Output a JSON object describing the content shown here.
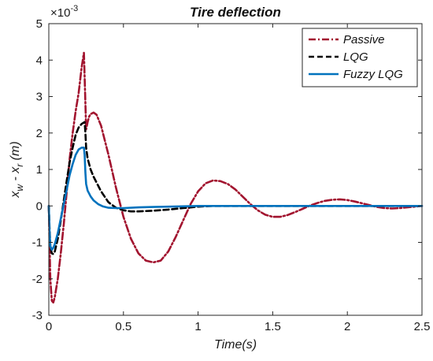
{
  "chart_data": {
    "type": "line",
    "title": "Tire deflection",
    "xlabel": "Time(s)",
    "ylabel": "x_w - x_r (m)",
    "ylabel_parts": {
      "a": "x",
      "a_sub": "w",
      "mid": " - x",
      "b_sub": "r",
      "unit": " (m)"
    },
    "y_exponent_text": "×10",
    "y_exponent_power": "-3",
    "y_scale": 0.001,
    "xlim": [
      0,
      2.5
    ],
    "ylim": [
      -3,
      5
    ],
    "xticks": [
      0,
      0.5,
      1,
      1.5,
      2,
      2.5
    ],
    "xtick_labels": [
      "0",
      "0.5",
      "1",
      "1.5",
      "2",
      "2.5"
    ],
    "yticks": [
      -3,
      -2,
      -1,
      0,
      1,
      2,
      3,
      4,
      5
    ],
    "ytick_labels": [
      "-3",
      "-2",
      "-1",
      "0",
      "1",
      "2",
      "3",
      "4",
      "5"
    ],
    "grid": false,
    "legend_position": "top-right",
    "series": [
      {
        "name": "Passive",
        "color": "#A2142F",
        "style": "dash-dot",
        "x": [
          0,
          0.005,
          0.01,
          0.02,
          0.03,
          0.04,
          0.06,
          0.08,
          0.1,
          0.12,
          0.14,
          0.16,
          0.18,
          0.2,
          0.22,
          0.235,
          0.245,
          0.25,
          0.26,
          0.27,
          0.28,
          0.3,
          0.32,
          0.35,
          0.4,
          0.45,
          0.5,
          0.55,
          0.6,
          0.65,
          0.7,
          0.75,
          0.8,
          0.85,
          0.9,
          0.95,
          1.0,
          1.05,
          1.1,
          1.15,
          1.2,
          1.25,
          1.3,
          1.35,
          1.4,
          1.45,
          1.5,
          1.55,
          1.6,
          1.65,
          1.7,
          1.75,
          1.8,
          1.85,
          1.9,
          1.95,
          2.0,
          2.05,
          2.1,
          2.15,
          2.2,
          2.25,
          2.3,
          2.35,
          2.4,
          2.45,
          2.5
        ],
        "y": [
          0,
          -1.0,
          -2.0,
          -2.6,
          -2.65,
          -2.5,
          -2.0,
          -1.3,
          -0.5,
          0.4,
          1.3,
          2.0,
          2.6,
          3.1,
          3.8,
          4.2,
          2.8,
          2.1,
          2.3,
          2.45,
          2.52,
          2.56,
          2.5,
          2.2,
          1.4,
          0.5,
          -0.3,
          -0.9,
          -1.3,
          -1.5,
          -1.55,
          -1.5,
          -1.25,
          -0.85,
          -0.4,
          0.05,
          0.4,
          0.62,
          0.7,
          0.68,
          0.6,
          0.45,
          0.25,
          0.05,
          -0.12,
          -0.24,
          -0.3,
          -0.3,
          -0.25,
          -0.17,
          -0.08,
          0.01,
          0.08,
          0.14,
          0.17,
          0.18,
          0.16,
          0.12,
          0.07,
          0.02,
          -0.03,
          -0.06,
          -0.07,
          -0.06,
          -0.04,
          -0.02,
          0
        ]
      },
      {
        "name": "LQG",
        "color": "#000000",
        "style": "dashed",
        "x": [
          0,
          0.005,
          0.01,
          0.02,
          0.03,
          0.04,
          0.06,
          0.08,
          0.1,
          0.12,
          0.14,
          0.16,
          0.18,
          0.2,
          0.22,
          0.24,
          0.245,
          0.25,
          0.26,
          0.28,
          0.3,
          0.35,
          0.4,
          0.45,
          0.5,
          0.55,
          0.6,
          0.7,
          0.8,
          0.9,
          1.0,
          1.1,
          1.2,
          1.5,
          2.0,
          2.5
        ],
        "y": [
          0,
          -0.6,
          -1.1,
          -1.3,
          -1.32,
          -1.25,
          -0.9,
          -0.4,
          0.15,
          0.7,
          1.2,
          1.6,
          1.95,
          2.15,
          2.25,
          2.3,
          2.0,
          1.6,
          1.3,
          1.0,
          0.8,
          0.4,
          0.1,
          -0.05,
          -0.12,
          -0.15,
          -0.15,
          -0.13,
          -0.1,
          -0.06,
          -0.02,
          0.0,
          0.0,
          0.0,
          0.0,
          0.0
        ]
      },
      {
        "name": "Fuzzy LQG",
        "color": "#0072BD",
        "style": "solid",
        "x": [
          0,
          0.005,
          0.01,
          0.02,
          0.03,
          0.04,
          0.06,
          0.08,
          0.1,
          0.12,
          0.14,
          0.16,
          0.18,
          0.2,
          0.22,
          0.235,
          0.24,
          0.245,
          0.25,
          0.26,
          0.28,
          0.3,
          0.33,
          0.36,
          0.4,
          0.45,
          0.5,
          0.6,
          0.7,
          0.8,
          1.0,
          1.5,
          2.0,
          2.5
        ],
        "y": [
          0,
          -0.7,
          -1.1,
          -1.2,
          -1.15,
          -1.05,
          -0.75,
          -0.35,
          0.05,
          0.45,
          0.85,
          1.15,
          1.4,
          1.55,
          1.6,
          1.6,
          1.4,
          0.9,
          0.6,
          0.42,
          0.26,
          0.15,
          0.05,
          -0.01,
          -0.05,
          -0.06,
          -0.06,
          -0.04,
          -0.03,
          -0.02,
          0.0,
          0.0,
          0.0,
          0.0
        ]
      }
    ]
  }
}
